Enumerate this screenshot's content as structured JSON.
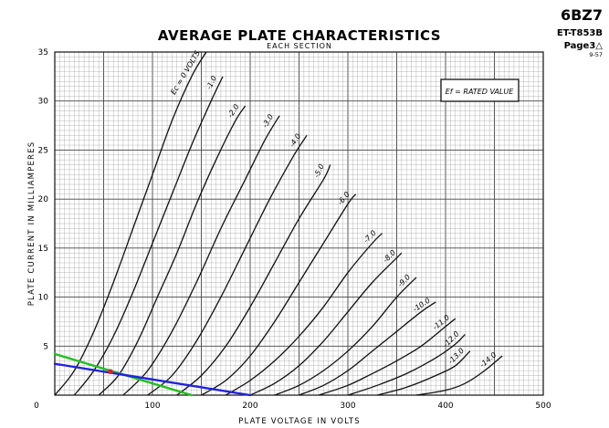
{
  "corner": {
    "tube": "6BZ7",
    "code": "ET-T853B",
    "page": "Page3△",
    "date": "9-57"
  },
  "chart_data": {
    "type": "line",
    "title": "AVERAGE PLATE CHARACTERISTICS",
    "subtitle": "EACH SECTION",
    "xlabel": "PLATE VOLTAGE IN VOLTS",
    "ylabel": "PLATE CURRENT IN MILLIAMPERES",
    "xlim": [
      0,
      500
    ],
    "ylim": [
      0,
      35
    ],
    "x_ticks": [
      "0",
      "100",
      "200",
      "300",
      "400",
      "500"
    ],
    "y_ticks": [
      "5",
      "10",
      "15",
      "20",
      "25",
      "30",
      "35"
    ],
    "grid": true,
    "annotation": "Ef = RATED VALUE",
    "series": [
      {
        "name": "Ec = 0 VOLTS",
        "points": [
          [
            0,
            0
          ],
          [
            20,
            2.5
          ],
          [
            40,
            6.5
          ],
          [
            60,
            11.5
          ],
          [
            80,
            17
          ],
          [
            100,
            22.5
          ],
          [
            120,
            28
          ],
          [
            140,
            32.5
          ],
          [
            155,
            35
          ]
        ]
      },
      {
        "name": "-1.0",
        "points": [
          [
            20,
            0
          ],
          [
            40,
            2.5
          ],
          [
            60,
            6
          ],
          [
            80,
            10.5
          ],
          [
            100,
            15.5
          ],
          [
            120,
            20.5
          ],
          [
            140,
            25.5
          ],
          [
            160,
            30
          ],
          [
            172,
            32.5
          ]
        ]
      },
      {
        "name": "-2.0",
        "points": [
          [
            45,
            0
          ],
          [
            65,
            2
          ],
          [
            85,
            5.5
          ],
          [
            105,
            10
          ],
          [
            125,
            14.5
          ],
          [
            145,
            19.5
          ],
          [
            165,
            24
          ],
          [
            185,
            28
          ],
          [
            195,
            29.5
          ]
        ]
      },
      {
        "name": "-3.0",
        "points": [
          [
            70,
            0
          ],
          [
            95,
            2.5
          ],
          [
            120,
            6.5
          ],
          [
            145,
            11.5
          ],
          [
            170,
            17
          ],
          [
            195,
            22
          ],
          [
            215,
            26
          ],
          [
            230,
            28.5
          ]
        ]
      },
      {
        "name": "-4.0",
        "points": [
          [
            95,
            0
          ],
          [
            120,
            2
          ],
          [
            145,
            5.5
          ],
          [
            170,
            10
          ],
          [
            195,
            15
          ],
          [
            220,
            20
          ],
          [
            245,
            24.5
          ],
          [
            258,
            26.5
          ]
        ]
      },
      {
        "name": "-5.0",
        "points": [
          [
            125,
            0
          ],
          [
            150,
            2
          ],
          [
            175,
            5
          ],
          [
            200,
            9
          ],
          [
            225,
            13.5
          ],
          [
            250,
            18
          ],
          [
            275,
            22
          ],
          [
            282,
            23.5
          ]
        ]
      },
      {
        "name": "-6.0",
        "points": [
          [
            150,
            0
          ],
          [
            175,
            1.5
          ],
          [
            200,
            4
          ],
          [
            225,
            7.5
          ],
          [
            250,
            11.5
          ],
          [
            275,
            15.5
          ],
          [
            300,
            19.5
          ],
          [
            308,
            20.5
          ]
        ]
      },
      {
        "name": "-7.0",
        "points": [
          [
            175,
            0
          ],
          [
            200,
            1.5
          ],
          [
            225,
            3.5
          ],
          [
            250,
            6
          ],
          [
            275,
            9
          ],
          [
            300,
            12.5
          ],
          [
            325,
            15.5
          ],
          [
            335,
            16.5
          ]
        ]
      },
      {
        "name": "-8.0",
        "points": [
          [
            200,
            0
          ],
          [
            225,
            1.2
          ],
          [
            250,
            3
          ],
          [
            275,
            5.5
          ],
          [
            300,
            8.5
          ],
          [
            325,
            11.5
          ],
          [
            350,
            14
          ],
          [
            355,
            14.5
          ]
        ]
      },
      {
        "name": "-9.0",
        "points": [
          [
            225,
            0
          ],
          [
            250,
            1
          ],
          [
            275,
            2.5
          ],
          [
            300,
            4.5
          ],
          [
            325,
            7
          ],
          [
            350,
            10
          ],
          [
            370,
            12
          ]
        ]
      },
      {
        "name": "-10.0",
        "points": [
          [
            250,
            0
          ],
          [
            275,
            1
          ],
          [
            300,
            2.5
          ],
          [
            325,
            4.5
          ],
          [
            350,
            6.5
          ],
          [
            375,
            8.5
          ],
          [
            390,
            9.5
          ]
        ]
      },
      {
        "name": "-11.0",
        "points": [
          [
            270,
            0
          ],
          [
            300,
            1
          ],
          [
            325,
            2.2
          ],
          [
            350,
            3.5
          ],
          [
            375,
            5
          ],
          [
            400,
            7
          ],
          [
            410,
            7.8
          ]
        ]
      },
      {
        "name": "-12.0",
        "points": [
          [
            300,
            0
          ],
          [
            330,
            1
          ],
          [
            360,
            2.2
          ],
          [
            390,
            3.8
          ],
          [
            410,
            5.2
          ],
          [
            420,
            6.2
          ]
        ]
      },
      {
        "name": "-13.0",
        "points": [
          [
            330,
            0
          ],
          [
            360,
            0.8
          ],
          [
            390,
            2
          ],
          [
            410,
            3
          ],
          [
            425,
            4.5
          ]
        ]
      },
      {
        "name": "-14.0",
        "points": [
          [
            370,
            0
          ],
          [
            400,
            0.5
          ],
          [
            420,
            1.2
          ],
          [
            440,
            2.5
          ],
          [
            458,
            4
          ]
        ]
      }
    ],
    "overlay_lines": [
      {
        "color": "#1fbf1f",
        "points": [
          [
            0,
            4.2
          ],
          [
            140,
            0
          ]
        ]
      },
      {
        "color": "#2222dd",
        "points": [
          [
            0,
            3.2
          ],
          [
            200,
            0
          ]
        ]
      }
    ],
    "marker": {
      "color": "#e02020",
      "x": 57,
      "y": 2.4
    }
  }
}
